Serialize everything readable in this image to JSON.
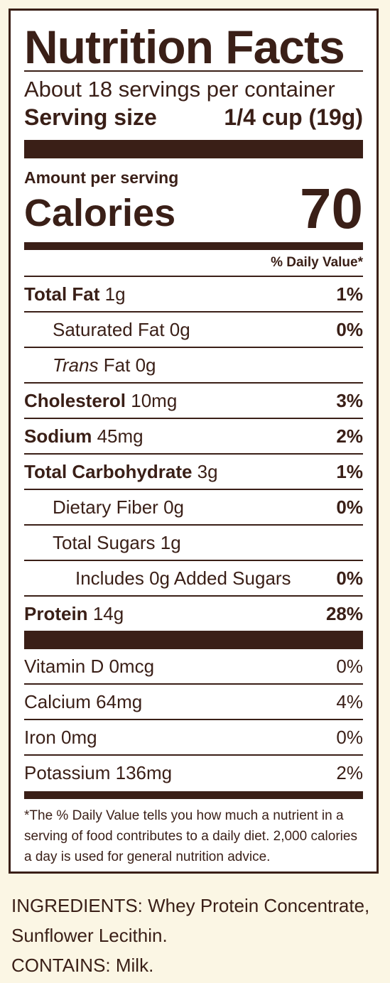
{
  "title": "Nutrition Facts",
  "servings_per_container": "About 18 servings per container",
  "serving_size": {
    "label": "Serving size",
    "value": "1/4 cup (19g)"
  },
  "amount_per_serving": "Amount per serving",
  "calories": {
    "label": "Calories",
    "value": "70"
  },
  "daily_value_header": "% Daily Value*",
  "nutrients": [
    {
      "name": "Total Fat",
      "amount": "1g",
      "dv": "1%"
    },
    {
      "name": "Saturated Fat",
      "amount": "0g",
      "dv": "0%"
    },
    {
      "name": "Trans",
      "name_rest": "Fat",
      "amount": "0g",
      "dv": ""
    },
    {
      "name": "Cholesterol",
      "amount": "10mg",
      "dv": "3%"
    },
    {
      "name": "Sodium",
      "amount": "45mg",
      "dv": "2%"
    },
    {
      "name": "Total Carbohydrate",
      "amount": "3g",
      "dv": "1%"
    },
    {
      "name": "Dietary Fiber",
      "amount": "0g",
      "dv": "0%"
    },
    {
      "name": "Total Sugars",
      "amount": "1g",
      "dv": ""
    },
    {
      "name": "Includes 0g Added Sugars",
      "dv": "0%"
    },
    {
      "name": "Protein",
      "amount": "14g",
      "dv": "28%"
    }
  ],
  "vitamins": [
    {
      "name": "Vitamin D",
      "amount": "0mcg",
      "dv": "0%"
    },
    {
      "name": "Calcium",
      "amount": "64mg",
      "dv": "4%"
    },
    {
      "name": "Iron",
      "amount": "0mg",
      "dv": "0%"
    },
    {
      "name": "Potassium",
      "amount": "136mg",
      "dv": "2%"
    }
  ],
  "footnote": "*The % Daily Value tells you how much a nutrient in a serving of food contributes to a daily diet. 2,000 calories a day is used for general nutrition advice.",
  "ingredients": {
    "line1": "INGREDIENTS: Whey Protein Concentrate,",
    "line2": "Sunflower Lecithin.",
    "contains": "CONTAINS: Milk."
  },
  "colors": {
    "text": "#3a1f17",
    "background": "#fbf6e4",
    "panel": "#ffffff"
  }
}
